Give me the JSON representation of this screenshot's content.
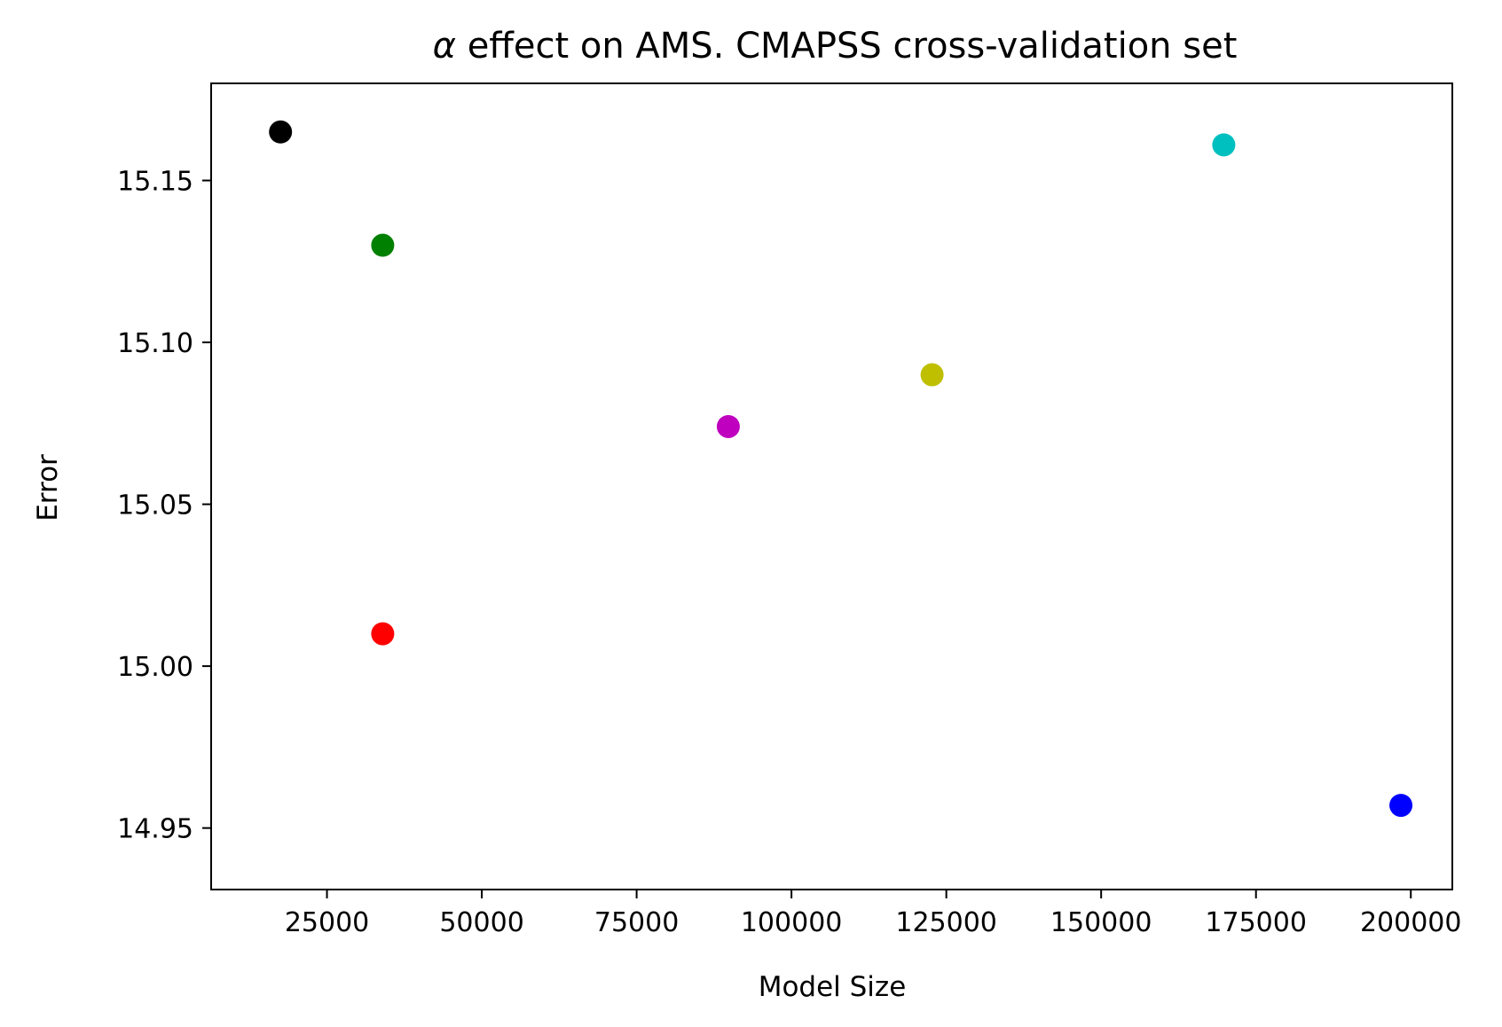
{
  "chart_data": {
    "type": "scatter",
    "title_alpha": "α",
    "title_rest": " effect on AMS. CMAPSS cross-validation set",
    "xlabel": "Model Size",
    "ylabel": "Error",
    "xlim": [
      6300,
      206700
    ],
    "ylim": [
      14.931,
      15.18
    ],
    "xticks": [
      25000,
      50000,
      75000,
      100000,
      125000,
      150000,
      175000,
      200000
    ],
    "xtick_labels": [
      "25000",
      "50000",
      "75000",
      "100000",
      "125000",
      "150000",
      "175000",
      "200000"
    ],
    "yticks": [
      14.95,
      15.0,
      15.05,
      15.1,
      15.15
    ],
    "ytick_labels": [
      "14.95",
      "15.00",
      "15.05",
      "15.10",
      "15.15"
    ],
    "grid": false,
    "points": [
      {
        "x": 17500,
        "y": 15.165,
        "color": "#000000"
      },
      {
        "x": 34000,
        "y": 15.13,
        "color": "#008000"
      },
      {
        "x": 34000,
        "y": 15.01,
        "color": "#ff0000"
      },
      {
        "x": 89800,
        "y": 15.074,
        "color": "#bf00bf"
      },
      {
        "x": 122700,
        "y": 15.09,
        "color": "#bfbf00"
      },
      {
        "x": 169800,
        "y": 15.161,
        "color": "#00bfbf"
      },
      {
        "x": 198400,
        "y": 14.957,
        "color": "#0000ff"
      }
    ]
  }
}
